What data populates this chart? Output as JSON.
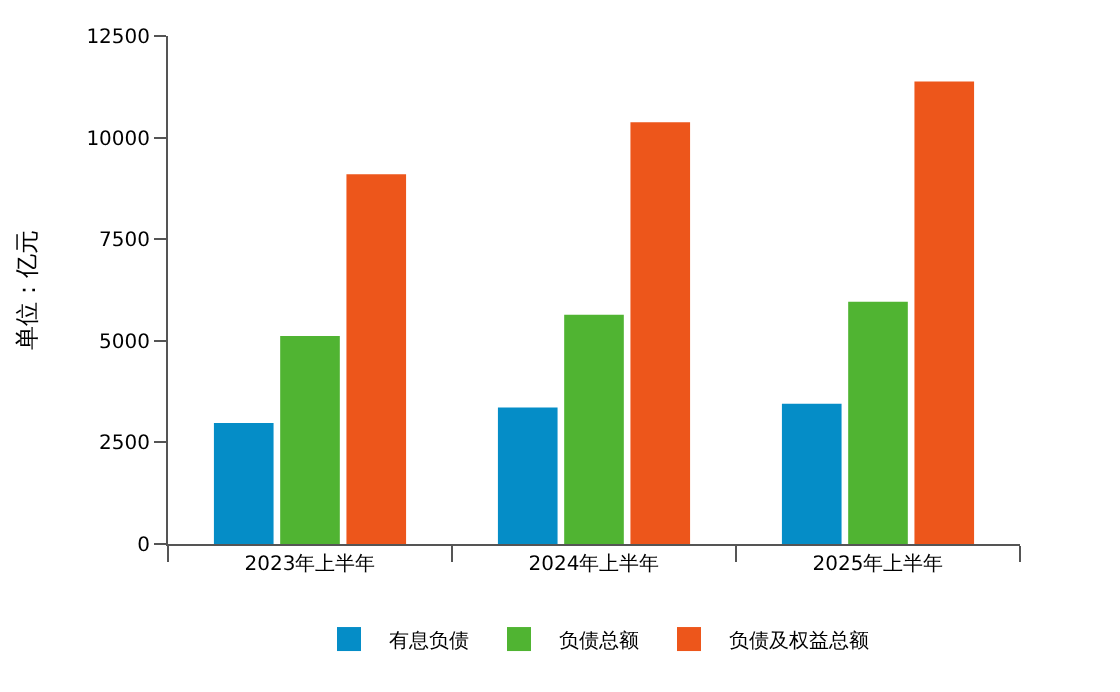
{
  "chart_data": {
    "type": "bar",
    "ylabel": "单位：亿元",
    "categories": [
      "2023年上半年",
      "2024年上半年",
      "2025年上半年"
    ],
    "series": [
      {
        "name": "有息负债",
        "color": "#058dc7",
        "values": [
          2980,
          3360,
          3450
        ]
      },
      {
        "name": "负债总额",
        "color": "#50b432",
        "values": [
          5120,
          5640,
          5960
        ]
      },
      {
        "name": "负债及权益总额",
        "color": "#ed561b",
        "values": [
          9100,
          10380,
          11380
        ]
      }
    ],
    "ylim": [
      0,
      12500
    ],
    "yticks": [
      0,
      2500,
      5000,
      7500,
      10000,
      12500
    ],
    "legend": "bottom"
  }
}
